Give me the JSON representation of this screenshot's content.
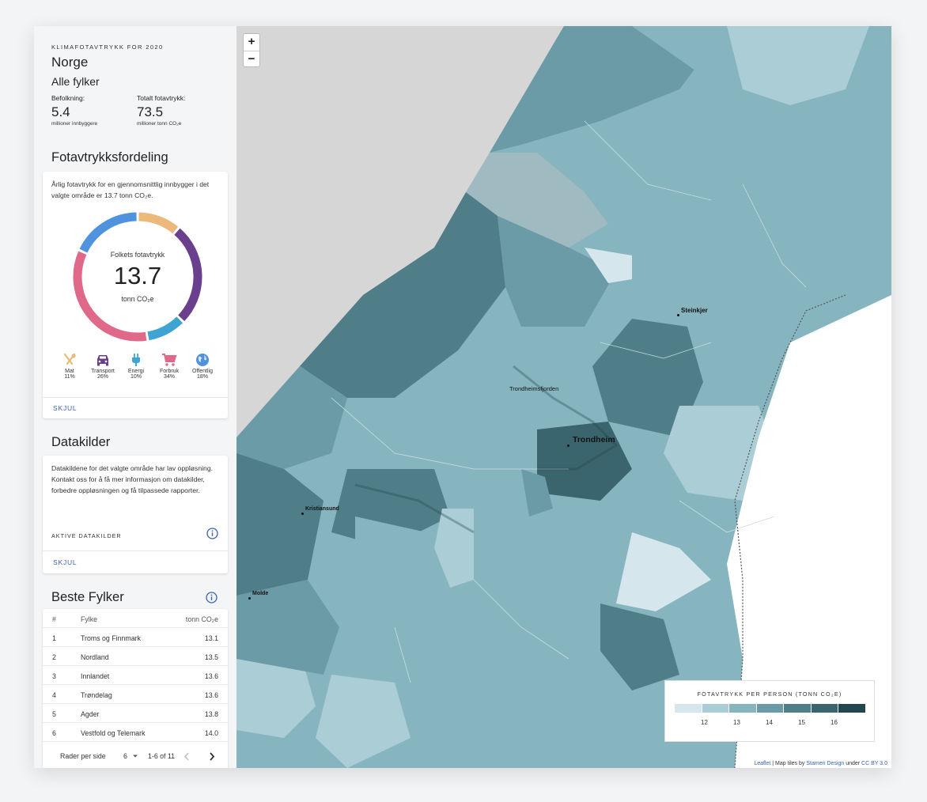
{
  "header": {
    "eyebrow": "KLIMAFOTAVTRYKK FOR 2020",
    "country": "Norge",
    "region": "Alle fylker",
    "population_label": "Befolkning:",
    "population_value": "5.4",
    "population_unit": "millioner innbyggere",
    "footprint_label": "Totalt fotavtrykk:",
    "footprint_value": "73.5",
    "footprint_unit": "millioner tonn CO₂e"
  },
  "distribution": {
    "title": "Fotavtrykksfordeling",
    "description": "Årlig fotavtrykk for en gjennomsnittlig innbygger i det valgte område er 13.7 tonn CO₂e.",
    "center_label": "Folkets fotavtrykk",
    "center_value": "13.7",
    "center_unit": "tonn CO₂e",
    "categories": [
      {
        "name": "Mat",
        "percent": "11%",
        "value": 11,
        "color": "#ecb97a",
        "icon": "fork-knife-icon"
      },
      {
        "name": "Transport",
        "percent": "26%",
        "value": 26,
        "color": "#6a3f8e",
        "icon": "car-icon"
      },
      {
        "name": "Energi",
        "percent": "10%",
        "value": 10,
        "color": "#3fa4d3",
        "icon": "plug-icon"
      },
      {
        "name": "Forbruk",
        "percent": "34%",
        "value": 34,
        "color": "#e0698a",
        "icon": "cart-icon"
      },
      {
        "name": "Offentlig",
        "percent": "18%",
        "value": 18,
        "color": "#4f93de",
        "icon": "globe-icon"
      }
    ],
    "hide_label": "SKJUL"
  },
  "sources": {
    "title": "Datakilder",
    "description": "Datakildene for det valgte område har lav oppløsning. Kontakt oss for å få mer informasjon om datakilder, forbedre oppløsningen og få tilpassede rapporter.",
    "active_label": "AKTIVE DATAKILDER",
    "hide_label": "SKJUL"
  },
  "best": {
    "title": "Beste Fylker",
    "columns": [
      "#",
      "Fylke",
      "tonn CO₂e"
    ],
    "rows": [
      {
        "rank": "1",
        "name": "Troms og Finnmark",
        "value": "13.1"
      },
      {
        "rank": "2",
        "name": "Nordland",
        "value": "13.5"
      },
      {
        "rank": "3",
        "name": "Innlandet",
        "value": "13.6"
      },
      {
        "rank": "4",
        "name": "Trøndelag",
        "value": "13.6"
      },
      {
        "rank": "5",
        "name": "Agder",
        "value": "13.8"
      },
      {
        "rank": "6",
        "name": "Vestfold og Telemark",
        "value": "14.0"
      }
    ],
    "rows_per_page_label": "Rader per side",
    "rows_per_page_value": "6",
    "range": "1-6 of 11"
  },
  "map": {
    "zoom_in": "+",
    "zoom_out": "−",
    "cities": [
      "Steinkjer",
      "Trondheimsfjorden",
      "Trondheim",
      "Kristiansund",
      "Molde"
    ],
    "legend_title": "FOTAVTRYKK PER PERSON (TONN CO₂E)",
    "legend_colors": [
      "#d5e7ec",
      "#aacdd6",
      "#86b5c0",
      "#6a9ba6",
      "#4f7e89",
      "#3a646e",
      "#24464e"
    ],
    "legend_ticks": [
      "12",
      "13",
      "14",
      "15",
      "16"
    ],
    "attribution_leaflet": "Leaflet",
    "attribution_mid": "| Map tiles by",
    "attribution_stamen": "Stamen Design",
    "attribution_under": "under",
    "attribution_license": "CC BY 3.0"
  }
}
